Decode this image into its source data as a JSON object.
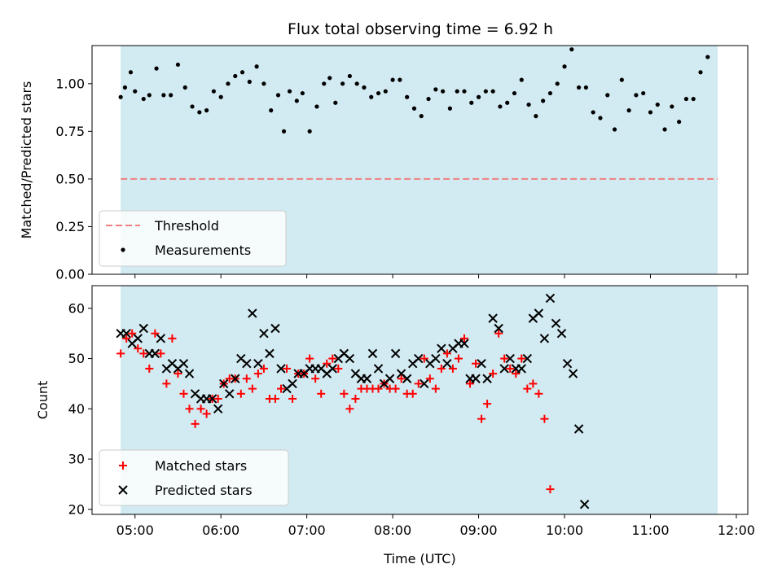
{
  "title": "Flux total observing time = 6.92 h",
  "colors": {
    "shade": "#add8e6",
    "threshold": "#f08080",
    "measurements": "#000000",
    "matched": "#ff0000",
    "predicted": "#000000"
  },
  "chart_data": [
    {
      "type": "scatter",
      "ylabel": "Matched/Predicted stars",
      "xlim": [
        "04:30",
        "12:08"
      ],
      "ylim": [
        0,
        1.2
      ],
      "y_ticks": [
        "0.00",
        "0.25",
        "0.50",
        "0.75",
        "1.00"
      ],
      "shaded_x_range": [
        "04:50",
        "11:47"
      ],
      "threshold": 0.5,
      "legend": {
        "placement": "lower-left",
        "entries": [
          "Threshold",
          "Measurements"
        ]
      },
      "series": [
        {
          "name": "Measurements",
          "points": [
            [
              "04:50",
              0.93
            ],
            [
              "04:53",
              0.98
            ],
            [
              "04:57",
              1.06
            ],
            [
              "05:00",
              0.96
            ],
            [
              "05:06",
              0.92
            ],
            [
              "05:10",
              0.94
            ],
            [
              "05:15",
              1.08
            ],
            [
              "05:20",
              0.94
            ],
            [
              "05:25",
              0.94
            ],
            [
              "05:30",
              1.1
            ],
            [
              "05:35",
              0.98
            ],
            [
              "05:40",
              0.88
            ],
            [
              "05:45",
              0.85
            ],
            [
              "05:50",
              0.86
            ],
            [
              "05:55",
              0.96
            ],
            [
              "06:00",
              0.93
            ],
            [
              "06:05",
              1.0
            ],
            [
              "06:10",
              1.04
            ],
            [
              "06:15",
              1.06
            ],
            [
              "06:20",
              1.01
            ],
            [
              "06:25",
              1.09
            ],
            [
              "06:30",
              1.0
            ],
            [
              "06:35",
              0.86
            ],
            [
              "06:40",
              0.94
            ],
            [
              "06:44",
              0.75
            ],
            [
              "06:48",
              0.96
            ],
            [
              "06:53",
              0.91
            ],
            [
              "06:57",
              0.95
            ],
            [
              "07:02",
              0.75
            ],
            [
              "07:07",
              0.88
            ],
            [
              "07:12",
              1.0
            ],
            [
              "07:16",
              1.03
            ],
            [
              "07:20",
              0.9
            ],
            [
              "07:25",
              1.0
            ],
            [
              "07:30",
              1.04
            ],
            [
              "07:35",
              1.0
            ],
            [
              "07:40",
              0.98
            ],
            [
              "07:45",
              0.93
            ],
            [
              "07:50",
              0.95
            ],
            [
              "07:55",
              0.96
            ],
            [
              "08:00",
              1.02
            ],
            [
              "08:05",
              1.02
            ],
            [
              "08:10",
              0.93
            ],
            [
              "08:15",
              0.87
            ],
            [
              "08:20",
              0.83
            ],
            [
              "08:25",
              0.92
            ],
            [
              "08:30",
              0.97
            ],
            [
              "08:35",
              0.96
            ],
            [
              "08:40",
              0.87
            ],
            [
              "08:45",
              0.96
            ],
            [
              "08:50",
              0.96
            ],
            [
              "08:55",
              0.9
            ],
            [
              "09:00",
              0.93
            ],
            [
              "09:05",
              0.96
            ],
            [
              "09:10",
              0.96
            ],
            [
              "09:15",
              0.88
            ],
            [
              "09:20",
              0.9
            ],
            [
              "09:25",
              0.95
            ],
            [
              "09:30",
              1.02
            ],
            [
              "09:35",
              0.89
            ],
            [
              "09:40",
              0.83
            ],
            [
              "09:45",
              0.91
            ],
            [
              "09:50",
              0.95
            ],
            [
              "09:55",
              1.0
            ],
            [
              "10:00",
              1.09
            ],
            [
              "10:05",
              1.18
            ],
            [
              "10:10",
              0.98
            ],
            [
              "10:15",
              0.98
            ],
            [
              "10:20",
              0.85
            ],
            [
              "10:25",
              0.82
            ],
            [
              "10:30",
              0.94
            ],
            [
              "10:35",
              0.76
            ],
            [
              "10:40",
              1.02
            ],
            [
              "10:45",
              0.86
            ],
            [
              "10:50",
              0.94
            ],
            [
              "10:55",
              0.95
            ],
            [
              "11:00",
              0.85
            ],
            [
              "11:05",
              0.89
            ],
            [
              "11:10",
              0.76
            ],
            [
              "11:15",
              0.88
            ],
            [
              "11:20",
              0.8
            ],
            [
              "11:25",
              0.92
            ],
            [
              "11:30",
              0.92
            ],
            [
              "11:35",
              1.06
            ],
            [
              "11:40",
              1.14
            ]
          ]
        }
      ]
    },
    {
      "type": "scatter",
      "xlabel": "Time (UTC)",
      "ylabel": "Count",
      "xlim": [
        "04:30",
        "12:08"
      ],
      "ylim": [
        19,
        64.5
      ],
      "x_ticks": [
        "05:00",
        "06:00",
        "07:00",
        "08:00",
        "09:00",
        "10:00",
        "11:00",
        "12:00"
      ],
      "y_ticks": [
        "20",
        "30",
        "40",
        "50",
        "60"
      ],
      "shaded_x_range": [
        "04:50",
        "11:47"
      ],
      "legend": {
        "placement": "lower-left",
        "entries": [
          "Matched stars",
          "Predicted stars"
        ]
      },
      "series": [
        {
          "name": "Matched stars",
          "marker": "plus",
          "points": [
            [
              "04:50",
              51
            ],
            [
              "04:54",
              54
            ],
            [
              "04:58",
              55
            ],
            [
              "05:02",
              52
            ],
            [
              "05:06",
              51
            ],
            [
              "05:10",
              48
            ],
            [
              "05:14",
              55
            ],
            [
              "05:18",
              51
            ],
            [
              "05:22",
              45
            ],
            [
              "05:26",
              54
            ],
            [
              "05:30",
              47
            ],
            [
              "05:34",
              43
            ],
            [
              "05:38",
              40
            ],
            [
              "05:42",
              37
            ],
            [
              "05:46",
              40
            ],
            [
              "05:50",
              39
            ],
            [
              "05:54",
              42
            ],
            [
              "05:58",
              42
            ],
            [
              "06:02",
              45
            ],
            [
              "06:06",
              46
            ],
            [
              "06:10",
              46
            ],
            [
              "06:14",
              43
            ],
            [
              "06:18",
              46
            ],
            [
              "06:22",
              44
            ],
            [
              "06:26",
              47
            ],
            [
              "06:30",
              48
            ],
            [
              "06:34",
              42
            ],
            [
              "06:38",
              42
            ],
            [
              "06:42",
              44
            ],
            [
              "06:46",
              48
            ],
            [
              "06:50",
              42
            ],
            [
              "06:54",
              47
            ],
            [
              "06:58",
              47
            ],
            [
              "07:02",
              50
            ],
            [
              "07:06",
              46
            ],
            [
              "07:10",
              43
            ],
            [
              "07:14",
              49
            ],
            [
              "07:18",
              50
            ],
            [
              "07:22",
              48
            ],
            [
              "07:26",
              43
            ],
            [
              "07:30",
              40
            ],
            [
              "07:34",
              42
            ],
            [
              "07:38",
              44
            ],
            [
              "07:42",
              44
            ],
            [
              "07:46",
              44
            ],
            [
              "07:50",
              44
            ],
            [
              "07:54",
              45
            ],
            [
              "07:58",
              44
            ],
            [
              "08:02",
              44
            ],
            [
              "08:06",
              46
            ],
            [
              "08:10",
              43
            ],
            [
              "08:14",
              43
            ],
            [
              "08:18",
              45
            ],
            [
              "08:22",
              50
            ],
            [
              "08:26",
              46
            ],
            [
              "08:30",
              44
            ],
            [
              "08:34",
              48
            ],
            [
              "08:38",
              51
            ],
            [
              "08:42",
              48
            ],
            [
              "08:46",
              50
            ],
            [
              "08:50",
              54
            ],
            [
              "08:54",
              45
            ],
            [
              "08:58",
              49
            ],
            [
              "09:02",
              38
            ],
            [
              "09:06",
              41
            ],
            [
              "09:10",
              47
            ],
            [
              "09:14",
              55
            ],
            [
              "09:18",
              50
            ],
            [
              "09:22",
              48
            ],
            [
              "09:26",
              47
            ],
            [
              "09:30",
              50
            ],
            [
              "09:34",
              44
            ],
            [
              "09:38",
              45
            ],
            [
              "09:42",
              43
            ],
            [
              "09:46",
              38
            ],
            [
              "09:50",
              24
            ]
          ]
        },
        {
          "name": "Predicted stars",
          "marker": "x",
          "points": [
            [
              "04:50",
              55
            ],
            [
              "04:54",
              55
            ],
            [
              "04:58",
              53
            ],
            [
              "05:02",
              54
            ],
            [
              "05:06",
              56
            ],
            [
              "05:10",
              51
            ],
            [
              "05:14",
              51
            ],
            [
              "05:18",
              54
            ],
            [
              "05:22",
              48
            ],
            [
              "05:26",
              49
            ],
            [
              "05:30",
              48
            ],
            [
              "05:34",
              49
            ],
            [
              "05:38",
              47
            ],
            [
              "05:42",
              43
            ],
            [
              "05:46",
              42
            ],
            [
              "05:50",
              42
            ],
            [
              "05:54",
              42
            ],
            [
              "05:58",
              40
            ],
            [
              "06:02",
              45
            ],
            [
              "06:06",
              43
            ],
            [
              "06:10",
              46
            ],
            [
              "06:14",
              50
            ],
            [
              "06:18",
              49
            ],
            [
              "06:22",
              59
            ],
            [
              "06:26",
              49
            ],
            [
              "06:30",
              55
            ],
            [
              "06:34",
              51
            ],
            [
              "06:38",
              56
            ],
            [
              "06:42",
              48
            ],
            [
              "06:46",
              44
            ],
            [
              "06:50",
              45
            ],
            [
              "06:54",
              47
            ],
            [
              "06:58",
              47
            ],
            [
              "07:02",
              48
            ],
            [
              "07:06",
              48
            ],
            [
              "07:10",
              48
            ],
            [
              "07:14",
              47
            ],
            [
              "07:18",
              48
            ],
            [
              "07:22",
              50
            ],
            [
              "07:26",
              51
            ],
            [
              "07:30",
              50
            ],
            [
              "07:34",
              47
            ],
            [
              "07:38",
              46
            ],
            [
              "07:42",
              46
            ],
            [
              "07:46",
              51
            ],
            [
              "07:50",
              48
            ],
            [
              "07:54",
              45
            ],
            [
              "07:58",
              46
            ],
            [
              "08:02",
              51
            ],
            [
              "08:06",
              47
            ],
            [
              "08:10",
              46
            ],
            [
              "08:14",
              49
            ],
            [
              "08:18",
              50
            ],
            [
              "08:22",
              45
            ],
            [
              "08:26",
              49
            ],
            [
              "08:30",
              50
            ],
            [
              "08:34",
              52
            ],
            [
              "08:38",
              49
            ],
            [
              "08:42",
              52
            ],
            [
              "08:46",
              53
            ],
            [
              "08:50",
              53
            ],
            [
              "08:54",
              46
            ],
            [
              "08:58",
              46
            ],
            [
              "09:02",
              49
            ],
            [
              "09:06",
              46
            ],
            [
              "09:10",
              58
            ],
            [
              "09:14",
              56
            ],
            [
              "09:18",
              48
            ],
            [
              "09:22",
              50
            ],
            [
              "09:26",
              48
            ],
            [
              "09:30",
              48
            ],
            [
              "09:34",
              50
            ],
            [
              "09:38",
              58
            ],
            [
              "09:42",
              59
            ],
            [
              "09:46",
              54
            ],
            [
              "09:50",
              62
            ],
            [
              "09:54",
              57
            ],
            [
              "09:58",
              55
            ],
            [
              "10:02",
              49
            ],
            [
              "10:06",
              47
            ],
            [
              "10:10",
              36
            ],
            [
              "10:14",
              21
            ]
          ]
        }
      ]
    }
  ]
}
